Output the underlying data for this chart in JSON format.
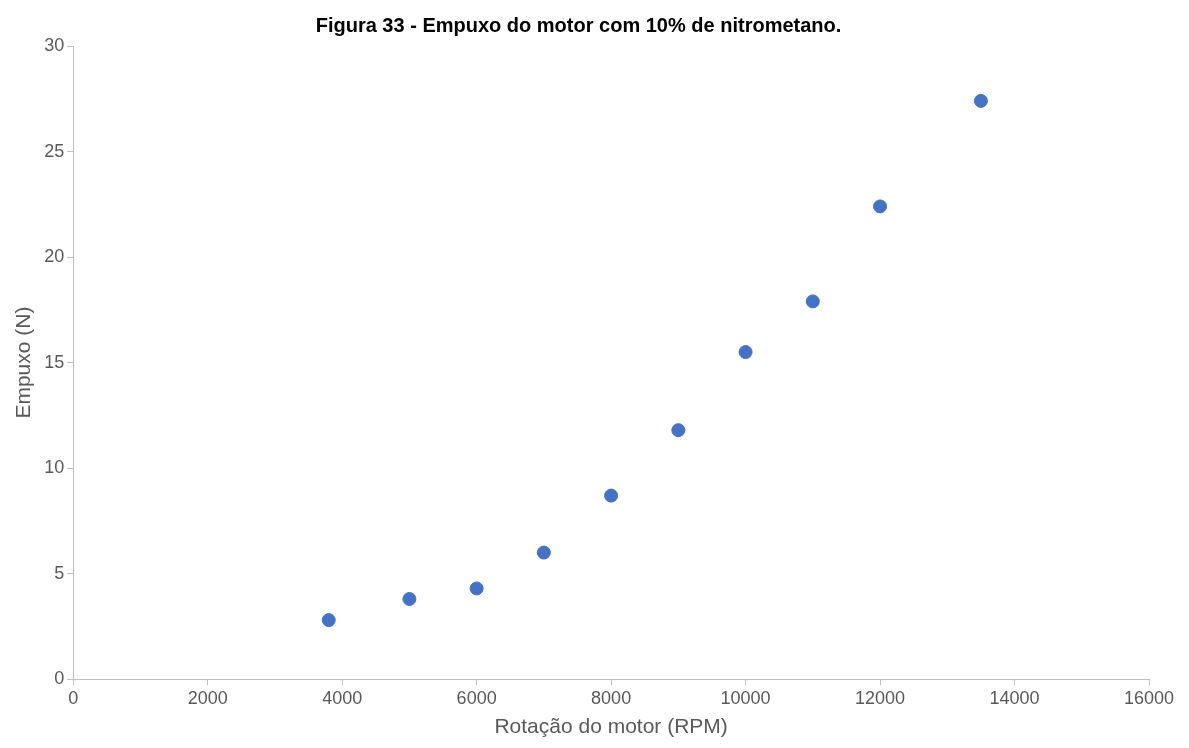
{
  "chart_data": {
    "type": "scatter",
    "title": "Figura 33 - Empuxo do motor com 10% de nitrometano.",
    "xlabel": "Rotação do motor (RPM)",
    "ylabel": "Empuxo (N)",
    "x": [
      3800,
      5000,
      6000,
      7000,
      8000,
      9000,
      10000,
      11000,
      12000,
      13500
    ],
    "values": [
      2.8,
      3.8,
      4.3,
      6.0,
      8.7,
      11.8,
      15.5,
      17.9,
      22.4,
      27.4
    ],
    "color": "#4472c4",
    "marker": "circle",
    "grid": false,
    "legend": false,
    "xlim": [
      0,
      16000
    ],
    "xticks": [
      0,
      2000,
      4000,
      6000,
      8000,
      10000,
      12000,
      14000,
      16000
    ],
    "ylim": [
      0,
      30
    ],
    "yticks": [
      0,
      5,
      10,
      15,
      20,
      25,
      30
    ]
  }
}
